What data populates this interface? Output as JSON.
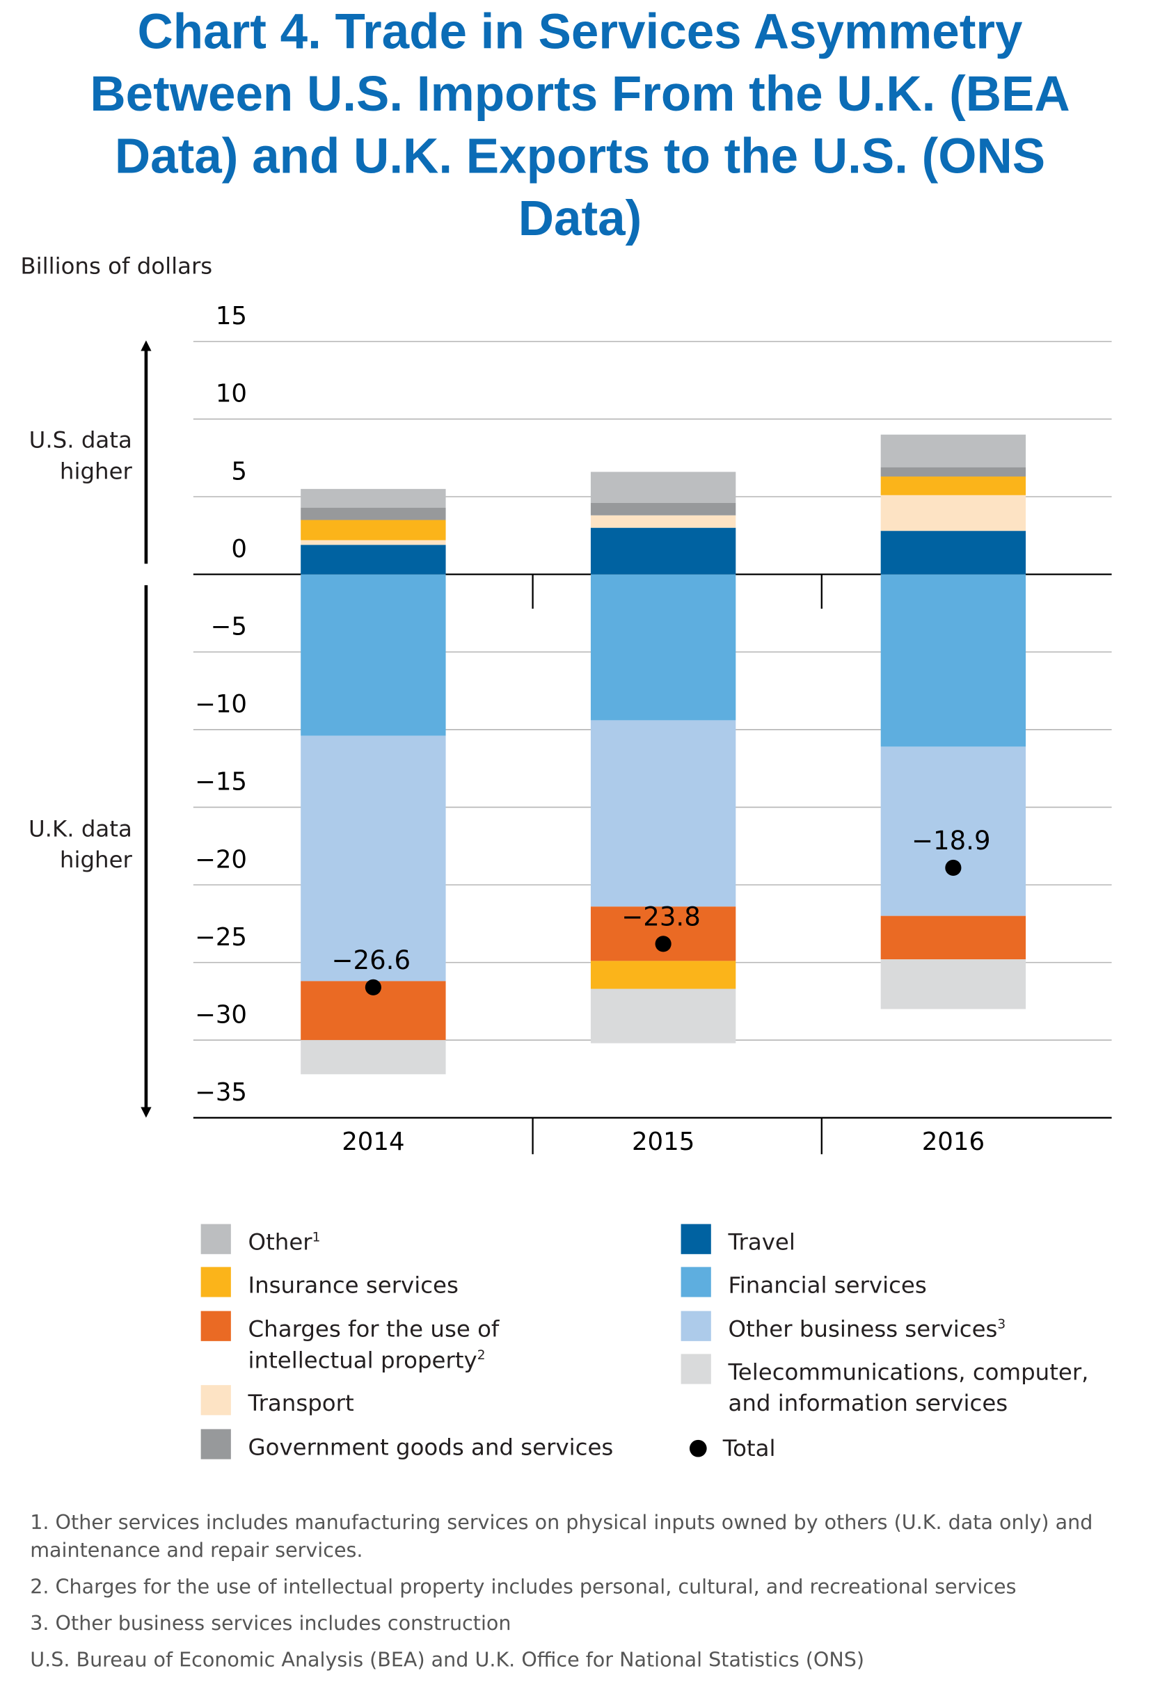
{
  "chart_data": {
    "type": "bar",
    "stacked": true,
    "title": "Chart 4. Trade in Services Asymmetry Between U.S. Imports From the U.K. (BEA Data) and U.K. Exports to the U.S. (ONS Data)",
    "y_axis_label": "Billions of dollars",
    "annotations": [
      "U.S. data higher",
      "U.K. data higher"
    ],
    "categories": [
      "2014",
      "2015",
      "2016"
    ],
    "series": [
      {
        "name": "Travel",
        "color": "#0062a1",
        "values": [
          1.9,
          3.0,
          2.8
        ]
      },
      {
        "name": "Financial services",
        "color": "#5eaedf",
        "values": [
          -10.4,
          -9.4,
          -11.1
        ]
      },
      {
        "name": "Other business services",
        "note": "3",
        "color": "#adcbea",
        "values": [
          -15.8,
          -12.0,
          -10.9
        ]
      },
      {
        "name": "Charges for the use of intellectual property",
        "note": "2",
        "color": "#ea6a24",
        "values": [
          -3.8,
          -3.5,
          -2.8
        ]
      },
      {
        "name": "Transport",
        "color": "#fde3c4",
        "values": [
          0.3,
          0.8,
          2.3
        ]
      },
      {
        "name": "Insurance services",
        "color": "#fbb41a",
        "values": [
          1.3,
          -1.8,
          1.2
        ]
      },
      {
        "name": "Government goods and services",
        "color": "#97999b",
        "values": [
          0.8,
          0.8,
          0.6
        ]
      },
      {
        "name": "Telecommunications, computer, and information services",
        "color": "#d9dadb",
        "values": [
          -2.2,
          -3.5,
          -3.2
        ]
      },
      {
        "name": "Other",
        "note": "1",
        "color": "#bcbec0",
        "values": [
          1.2,
          2.0,
          2.1
        ]
      }
    ],
    "total": {
      "name": "Total",
      "color": "#000000",
      "values": [
        -26.6,
        -23.8,
        -18.9
      ],
      "value_labels": [
        "−26.6",
        "−23.8",
        "−18.9"
      ]
    },
    "ylim": [
      -35,
      15
    ],
    "yticks": [
      15,
      10,
      5,
      0,
      {
        "value": -5,
        "label": "−5"
      },
      {
        "value": -10,
        "label": "−10"
      },
      {
        "value": -15,
        "label": "−15"
      },
      {
        "value": -20,
        "label": "−20"
      },
      {
        "value": -25,
        "label": "−25"
      },
      {
        "value": -30,
        "label": "−30"
      },
      {
        "value": -35,
        "label": "−35"
      }
    ],
    "grid": true,
    "footnotes": [
      "1. Other services includes manufacturing services on physical inputs owned by others (U.K. data only) and maintenance and repair services.",
      "2. Charges for the use of intellectual property includes personal, cultural, and recreational services",
      "3. Other business services includes construction"
    ],
    "source": "U.S. Bureau of Economic Analysis (BEA) and U.K. Office for National Statistics (ONS)"
  }
}
